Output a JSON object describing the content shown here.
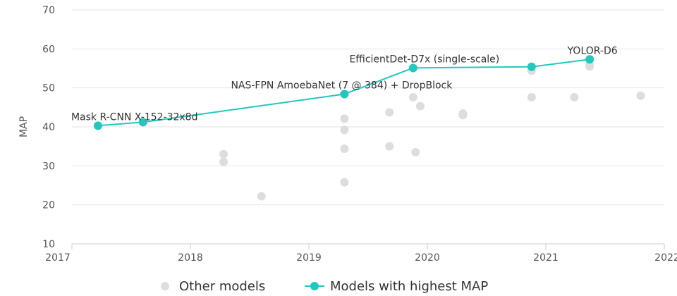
{
  "chart_data": {
    "type": "scatter",
    "ylabel": "MAP",
    "xlabel": "",
    "xlim": [
      2017,
      2022
    ],
    "ylim": [
      10,
      70
    ],
    "xticks": [
      2017,
      2018,
      2019,
      2020,
      2021,
      2022
    ],
    "yticks": [
      10,
      20,
      30,
      40,
      50,
      60,
      70
    ],
    "grid": true,
    "legend_position": "bottom",
    "colors": {
      "other": "#dddddd",
      "best": "#21c8c0",
      "grid": "#e6e6e6",
      "axis": "#cccccc"
    },
    "series": [
      {
        "name": "Other models",
        "points": [
          {
            "x": 2018.28,
            "y": 33.0
          },
          {
            "x": 2018.28,
            "y": 31.0
          },
          {
            "x": 2018.6,
            "y": 22.2
          },
          {
            "x": 2019.3,
            "y": 42.1
          },
          {
            "x": 2019.3,
            "y": 39.2
          },
          {
            "x": 2019.3,
            "y": 34.4
          },
          {
            "x": 2019.3,
            "y": 25.8
          },
          {
            "x": 2019.68,
            "y": 43.7
          },
          {
            "x": 2019.68,
            "y": 35.0
          },
          {
            "x": 2019.88,
            "y": 47.6
          },
          {
            "x": 2019.94,
            "y": 45.3
          },
          {
            "x": 2019.9,
            "y": 33.5
          },
          {
            "x": 2020.3,
            "y": 43.4
          },
          {
            "x": 2020.3,
            "y": 43.0
          },
          {
            "x": 2020.88,
            "y": 54.4
          },
          {
            "x": 2020.88,
            "y": 47.6
          },
          {
            "x": 2021.24,
            "y": 47.6
          },
          {
            "x": 2021.37,
            "y": 56.0
          },
          {
            "x": 2021.37,
            "y": 55.5
          },
          {
            "x": 2021.8,
            "y": 48.0
          }
        ]
      },
      {
        "name": "Models with highest MAP",
        "points": [
          {
            "x": 2017.22,
            "y": 40.3,
            "label": "Mask R-CNN X-152-32x8d"
          },
          {
            "x": 2017.6,
            "y": 41.2
          },
          {
            "x": 2019.3,
            "y": 48.4,
            "label": "NAS-FPN AmoebaNet (7 @ 384) + DropBlock"
          },
          {
            "x": 2019.88,
            "y": 55.1,
            "label": "EfficientDet-D7x (single-scale)"
          },
          {
            "x": 2020.88,
            "y": 55.4
          },
          {
            "x": 2021.37,
            "y": 57.3,
            "label": "YOLOR-D6"
          }
        ]
      }
    ]
  }
}
